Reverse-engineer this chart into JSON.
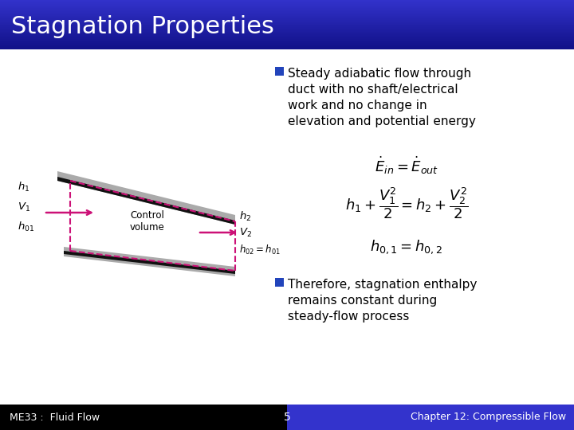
{
  "title": "Stagnation Properties",
  "title_bg_top": "#111188",
  "title_bg_bottom": "#3333cc",
  "title_text_color": "#ffffff",
  "slide_bg_color": "#ffffff",
  "footer_left_bg": "#000000",
  "footer_right_bg": "#3333cc",
  "footer_left": "ME33 :  Fluid Flow",
  "footer_center": "5",
  "footer_right": "Chapter 12: Compressible Flow",
  "footer_text_color": "#ffffff",
  "bullet_color": "#2244bb",
  "bullet1_line1": "Steady adiabatic flow through",
  "bullet1_line2": "duct with no shaft/electrical",
  "bullet1_line3": "work and no change in",
  "bullet1_line4": "elevation and potential energy",
  "bullet2_line1": "Therefore, stagnation enthalpy",
  "bullet2_line2": "remains constant during",
  "bullet2_line3": "steady-flow process",
  "eq1": "$\\dot{E}_{in} = \\dot{E}_{out}$",
  "eq2": "$h_1 + \\dfrac{V_1^2}{2} = h_2 + \\dfrac{V_2^2}{2}$",
  "eq3": "$h_{0,1} = h_{0,2}$",
  "duct_gray": "#aaaaaa",
  "duct_black": "#111111",
  "duct_dashed": "#cc1177",
  "control_volume_text": "Control\nvolume"
}
